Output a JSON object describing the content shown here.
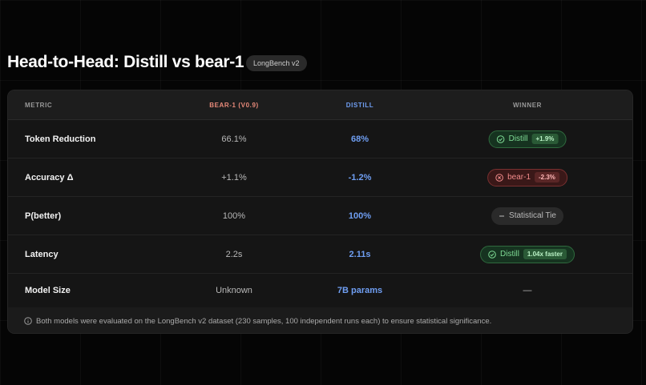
{
  "header": {
    "title": "Head-to-Head: Distill vs bear-1",
    "badge": "LongBench v2"
  },
  "table": {
    "columns": [
      "METRIC",
      "BEAR-1 (V0.9)",
      "DISTILL",
      "WINNER"
    ],
    "rows": [
      {
        "metric": "Token Reduction",
        "bear1": "66.1%",
        "distill": "68%",
        "winner": {
          "label": "Distill",
          "delta": "+1.9%"
        }
      },
      {
        "metric": "Accuracy Δ",
        "bear1": "+1.1%",
        "distill": "-1.2%",
        "winner": {
          "label": "bear-1",
          "delta": "-2.3%"
        }
      },
      {
        "metric": "P(better)",
        "bear1": "100%",
        "distill": "100%",
        "winner": {
          "label": "Statistical Tie"
        }
      },
      {
        "metric": "Latency",
        "bear1": "2.2s",
        "distill": "2.11s",
        "winner": {
          "label": "Distill",
          "delta": "1.04x faster"
        }
      },
      {
        "metric": "Model Size",
        "bear1": "Unknown",
        "distill": "7B params",
        "winner": {
          "label": "—"
        }
      }
    ],
    "footnote": "Both models were evaluated on the LongBench v2 dataset (230 samples, 100 independent runs each) to ensure statistical significance."
  }
}
